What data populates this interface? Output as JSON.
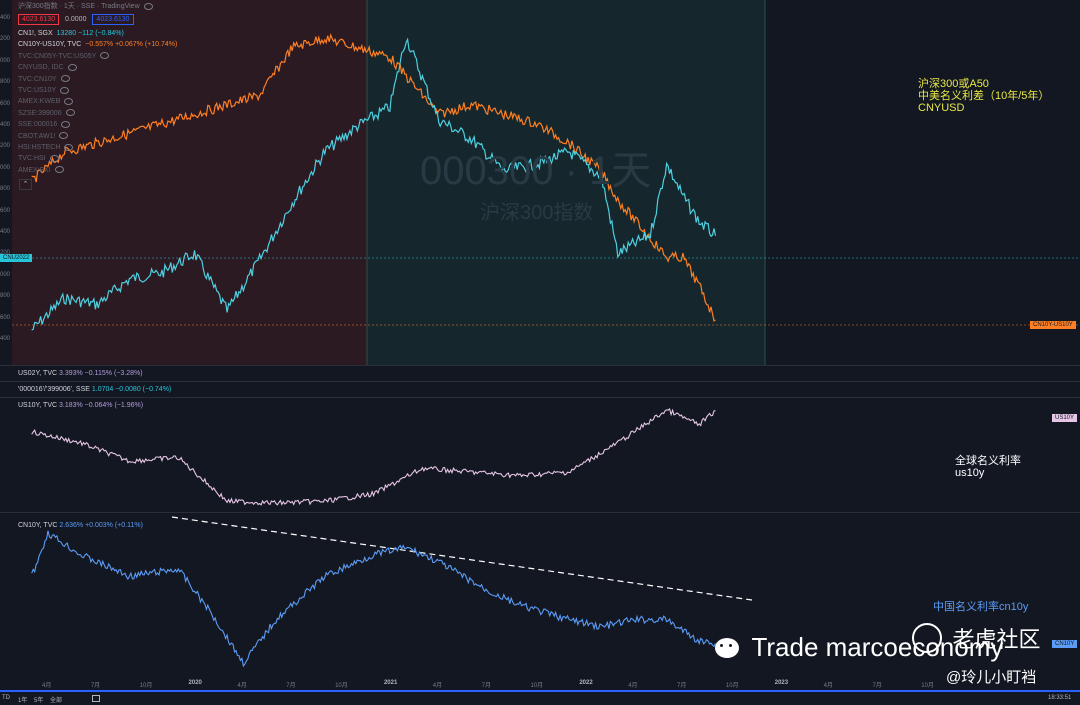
{
  "header": {
    "title": "沪深300指数 · 1天 · SSE · TradingView",
    "price_red": "4023.6130",
    "price_mid": "0.0000",
    "price_blue": "4023.6130"
  },
  "legend_main": [
    {
      "name": "CN1!, SGX",
      "value": "13280 −112 (−0.84%)",
      "color": "#26c6da"
    },
    {
      "name": "CN10Y-US10Y, TVC",
      "value": "−0.557% +0.067% (+10.74%)",
      "color": "#ff7f22"
    },
    {
      "name": "TVC:CN05Y-TVC:US05Y",
      "value": "",
      "color": "#5d606b"
    },
    {
      "name": "CNYUSD, IDC",
      "value": "",
      "color": "#5d606b"
    },
    {
      "name": "TVC:CN10Y",
      "value": "",
      "color": "#5d606b"
    },
    {
      "name": "TVC:US10Y",
      "value": "",
      "color": "#5d606b"
    },
    {
      "name": "AMEX:KWEB",
      "value": "",
      "color": "#5d606b"
    },
    {
      "name": "SZSE:399006",
      "value": "",
      "color": "#5d606b"
    },
    {
      "name": "SSE:000016",
      "value": "",
      "color": "#5d606b"
    },
    {
      "name": "CBOT:AW1!",
      "value": "",
      "color": "#5d606b"
    },
    {
      "name": "HSI:HSTECH",
      "value": "",
      "color": "#5d606b"
    },
    {
      "name": "TVC:HSI",
      "value": "",
      "color": "#5d606b"
    },
    {
      "name": "AMEX:FXI",
      "value": "",
      "color": "#5d606b"
    }
  ],
  "pane_legends": {
    "us02y": {
      "name": "US02Y, TVC",
      "value": "3.393% −0.115% (−3.28%)",
      "color": "#b39ddb"
    },
    "ratio": {
      "name": "'000016'/'399006', SSE",
      "value": "1.0704 −0.0080 (−0.74%)",
      "color": "#26c6da"
    },
    "us10y": {
      "name": "US10Y, TVC",
      "value": "3.183% −0.064% (−1.96%)",
      "color": "#b39ddb"
    },
    "cn10y": {
      "name": "CN10Y, TVC",
      "value": "2.636% +0.003% (+0.11%)",
      "color": "#5b9cf6"
    }
  },
  "tags": {
    "cnu": "CNU2022",
    "spread": "CN10Y-US10Y",
    "us10y": "US10Y",
    "cn10y": "CN10Y"
  },
  "watermark": {
    "symbol": "000300 · 1天",
    "name": "沪深300指数"
  },
  "annotations": {
    "main": [
      "沪深300或A50",
      "中美名义利差（10年/5年）",
      "CNYUSD"
    ],
    "us10y": [
      "全球名义利率",
      "us10y"
    ],
    "cn10y": "中国名义利率cn10y"
  },
  "left_axis_labels": [
    "400",
    "200",
    "000",
    "800",
    "600",
    "400",
    "200",
    "000",
    "800",
    "600",
    "400",
    "200",
    "000",
    "800",
    "600",
    "400"
  ],
  "x_axis": [
    "4月",
    "7月",
    "10月",
    "2020",
    "4月",
    "7月",
    "10月",
    "2021",
    "4月",
    "7月",
    "10月",
    "2022",
    "4月",
    "7月",
    "10月",
    "2023",
    "4月",
    "7月",
    "10月"
  ],
  "bottom_bar": {
    "items": [
      "TD",
      "1年",
      "5年",
      "全部"
    ],
    "time": "18:33:51"
  },
  "watermark_overlay": {
    "brand": "Trade marcoeconomy",
    "site": "老虎社区",
    "user": "@玲儿小盯裆"
  },
  "colors": {
    "bg": "#131722",
    "cn1": "#4dd0e1",
    "spread": "#ff7f22",
    "us10y": "#e6c6e6",
    "cn10y": "#5b9cf6",
    "annotation": "#e8e845",
    "shade_red": "#2b1a22",
    "shade_teal": "#15272c"
  },
  "chart_data": [
    {
      "type": "line",
      "title": "沪深300指数 · 1天 · SSE",
      "x": [
        "2019-03",
        "2019-05",
        "2019-07",
        "2019-09",
        "2019-11",
        "2020-01",
        "2020-03",
        "2020-05",
        "2020-07",
        "2020-09",
        "2020-11",
        "2021-01",
        "2021-02",
        "2021-04",
        "2021-06",
        "2021-08",
        "2021-10",
        "2021-12",
        "2022-02",
        "2022-03",
        "2022-05",
        "2022-06",
        "2022-07",
        "2022-08",
        "2022-09"
      ],
      "series": [
        {
          "name": "CN1!, SGX",
          "values": [
            11800,
            12300,
            12200,
            12600,
            12700,
            13000,
            12100,
            12900,
            13800,
            14600,
            15000,
            15300,
            16400,
            15100,
            14800,
            14300,
            14400,
            14600,
            14200,
            13000,
            13300,
            14400,
            13900,
            13500,
            13280
          ]
        },
        {
          "name": "CN10Y-US10Y, TVC",
          "values": [
            0.9,
            1.2,
            1.3,
            1.4,
            1.5,
            1.6,
            1.7,
            1.8,
            2.3,
            2.4,
            2.3,
            2.2,
            2.0,
            1.6,
            1.7,
            1.6,
            1.5,
            1.3,
            1.0,
            0.7,
            0.3,
            0.1,
            0.1,
            -0.2,
            -0.557
          ]
        }
      ]
    },
    {
      "type": "line",
      "x": [
        "2019-03",
        "2019-06",
        "2019-09",
        "2019-12",
        "2020-03",
        "2020-06",
        "2020-09",
        "2020-12",
        "2021-03",
        "2021-06",
        "2021-09",
        "2021-12",
        "2022-03",
        "2022-06",
        "2022-08",
        "2022-09"
      ],
      "series": [
        {
          "name": "US10Y, TVC",
          "values": [
            2.6,
            2.3,
            1.8,
            1.9,
            0.7,
            0.65,
            0.7,
            0.9,
            1.6,
            1.5,
            1.4,
            1.5,
            2.3,
            3.2,
            2.8,
            3.183
          ]
        }
      ]
    },
    {
      "type": "line",
      "x": [
        "2019-03",
        "2019-04",
        "2019-06",
        "2019-09",
        "2019-12",
        "2020-02",
        "2020-04",
        "2020-06",
        "2020-09",
        "2020-12",
        "2021-02",
        "2021-04",
        "2021-07",
        "2021-09",
        "2021-12",
        "2022-02",
        "2022-04",
        "2022-06",
        "2022-08",
        "2022-09"
      ],
      "series": [
        {
          "name": "CN10Y, TVC",
          "values": [
            3.1,
            3.4,
            3.25,
            3.1,
            3.15,
            2.85,
            2.5,
            2.8,
            3.1,
            3.25,
            3.3,
            3.2,
            3.0,
            2.9,
            2.8,
            2.75,
            2.8,
            2.8,
            2.65,
            2.636
          ]
        }
      ]
    }
  ]
}
